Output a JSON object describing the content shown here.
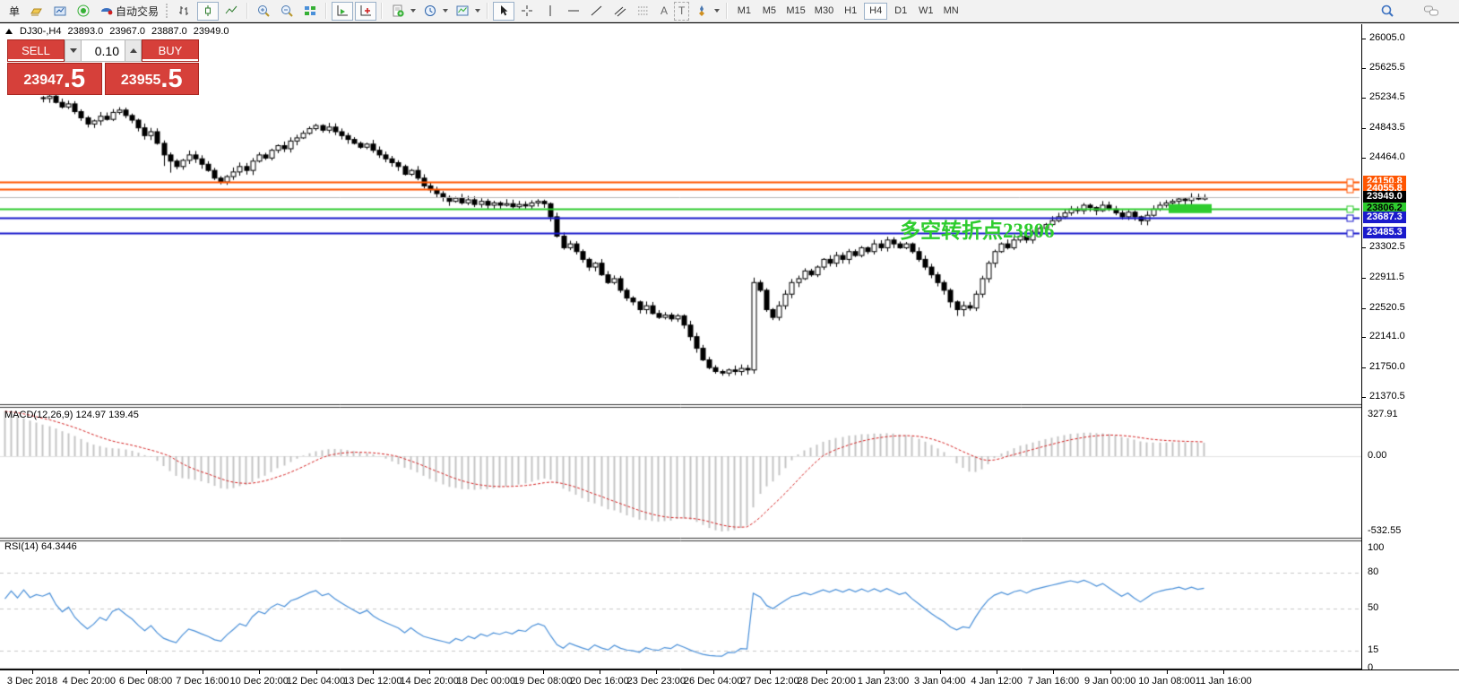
{
  "colors": {
    "toolbar_bg": "#f2f2f2",
    "panel_red": "#d6403a",
    "level_orange": "#ff5500",
    "level_green": "#2ecc2e",
    "level_blue": "#1a1acc",
    "current_price_gray": "#b8b8b8",
    "macd_histogram": "#c4c4c4",
    "macd_signal": "#d62222",
    "rsi_line": "#4a90d9",
    "annotation_green": "#2ecc2e"
  },
  "toolbar": {
    "new_order_label": "单",
    "autotrade_label": "自动交易",
    "text_tool_label": "A",
    "label_tool_label": "T",
    "timeframes": [
      "M1",
      "M5",
      "M15",
      "M30",
      "H1",
      "H4",
      "D1",
      "W1",
      "MN"
    ],
    "active_timeframe": "H4"
  },
  "quote_bar": {
    "symbol": "DJ30-,H4",
    "open": "23893.0",
    "high": "23967.0",
    "low": "23887.0",
    "close": "23949.0"
  },
  "trade_panel": {
    "sell_label": "SELL",
    "buy_label": "BUY",
    "volume": "0.10",
    "sell_price_int": "23947",
    "sell_price_dec": ".5",
    "buy_price_int": "23955",
    "buy_price_dec": ".5"
  },
  "annotation": {
    "text": "多空转折点23806",
    "color": "#2ecc2e"
  },
  "indicators": {
    "macd_label": "MACD(12,26,9) 124.97 139.45",
    "rsi_label": "RSI(14) 64.3446"
  },
  "chart_data": {
    "type": "candlestick",
    "symbol": "DJ30-",
    "timeframe": "H4",
    "title": "DJ30-,H4 23893.0 23967.0 23887.0 23949.0",
    "last_bar_ohlc": {
      "open": 23893.0,
      "high": 23967.0,
      "low": 23887.0,
      "close": 23949.0
    },
    "visible_price_range": [
      21290,
      26150
    ],
    "pre_window_bars": 6,
    "closes": [
      25150,
      25220,
      25180,
      25260,
      25210,
      25240,
      25230,
      25260,
      25180,
      25120,
      25160,
      25060,
      24980,
      24900,
      24940,
      25000,
      24960,
      25050,
      25080,
      25010,
      24950,
      24850,
      24750,
      24800,
      24650,
      24500,
      24420,
      24350,
      24430,
      24500,
      24450,
      24380,
      24300,
      24200,
      24150,
      24220,
      24280,
      24350,
      24300,
      24420,
      24500,
      24460,
      24560,
      24620,
      24580,
      24680,
      24720,
      24780,
      24840,
      24880,
      24820,
      24860,
      24800,
      24750,
      24700,
      24650,
      24600,
      24640,
      24560,
      24500,
      24450,
      24400,
      24350,
      24250,
      24300,
      24200,
      24100,
      24050,
      24000,
      23950,
      23900,
      23940,
      23880,
      23920,
      23860,
      23900,
      23850,
      23880,
      23850,
      23870,
      23830,
      23860,
      23840,
      23880,
      23900,
      23870,
      23700,
      23450,
      23300,
      23350,
      23250,
      23150,
      23050,
      23100,
      22950,
      22850,
      22900,
      22750,
      22650,
      22600,
      22500,
      22550,
      22450,
      22400,
      22430,
      22380,
      22420,
      22300,
      22150,
      22000,
      21850,
      21750,
      21700,
      21680,
      21720,
      21700,
      21740,
      21720,
      22850,
      22750,
      22500,
      22400,
      22550,
      22700,
      22850,
      22900,
      23000,
      22950,
      23050,
      23150,
      23100,
      23200,
      23150,
      23250,
      23200,
      23300,
      23250,
      23350,
      23300,
      23400,
      23350,
      23300,
      23350,
      23250,
      23150,
      23050,
      22950,
      22850,
      22750,
      22600,
      22500,
      22550,
      22520,
      22700,
      22900,
      23100,
      23250,
      23350,
      23300,
      23400,
      23450,
      23400,
      23500,
      23550,
      23600,
      23650,
      23700,
      23750,
      23800,
      23780,
      23850,
      23820,
      23780,
      23850,
      23800,
      23750,
      23700,
      23760,
      23700,
      23650,
      23720,
      23800,
      23850,
      23880,
      23900,
      23930,
      23910,
      23950,
      23930,
      23949
    ],
    "horizontal_levels": [
      {
        "price": 24150.8,
        "color": "#ff5500",
        "label_fg": "#ffffff"
      },
      {
        "price": 24055.8,
        "color": "#ff5500",
        "label_fg": "#ffffff"
      },
      {
        "price": 23949.0,
        "color": "#b8b8b8",
        "label_bg": "#000000",
        "label_fg": "#ffffff",
        "role": "current-price"
      },
      {
        "price": 23806.2,
        "color": "#2ecc2e",
        "label_fg": "#000000"
      },
      {
        "price": 23687.3,
        "color": "#1a1acc",
        "label_fg": "#ffffff"
      },
      {
        "price": 23485.3,
        "color": "#1a1acc",
        "label_fg": "#ffffff"
      }
    ],
    "highlight_rect": {
      "price": 23806.2,
      "color": "#2ecc2e"
    },
    "y_axis_ticks": [
      26005.0,
      25625.5,
      25234.5,
      24843.5,
      24464.0,
      23302.5,
      22911.5,
      22520.5,
      22141.0,
      21750.0,
      21370.5
    ],
    "x_axis_labels": [
      "3 Dec 2018",
      "4 Dec 20:00",
      "6 Dec 08:00",
      "7 Dec 16:00",
      "10 Dec 20:00",
      "12 Dec 04:00",
      "13 Dec 12:00",
      "14 Dec 20:00",
      "18 Dec 00:00",
      "19 Dec 08:00",
      "20 Dec 16:00",
      "23 Dec 23:00",
      "26 Dec 04:00",
      "27 Dec 12:00",
      "28 Dec 20:00",
      "1 Jan 23:00",
      "3 Jan 04:00",
      "4 Jan 12:00",
      "7 Jan 16:00",
      "9 Jan 00:00",
      "10 Jan 08:00",
      "11 Jan 16:00"
    ],
    "sub_indicators": [
      {
        "type": "MACD",
        "params": [
          12,
          26,
          9
        ],
        "current_values": [
          124.97,
          139.45
        ],
        "axis_ticks": [
          327.91,
          0.0,
          -532.55
        ]
      },
      {
        "type": "RSI",
        "params": [
          14
        ],
        "current_value": 64.3446,
        "axis_ticks": [
          100,
          80,
          50,
          15,
          0
        ],
        "level_lines": [
          80,
          50,
          15
        ]
      }
    ]
  }
}
